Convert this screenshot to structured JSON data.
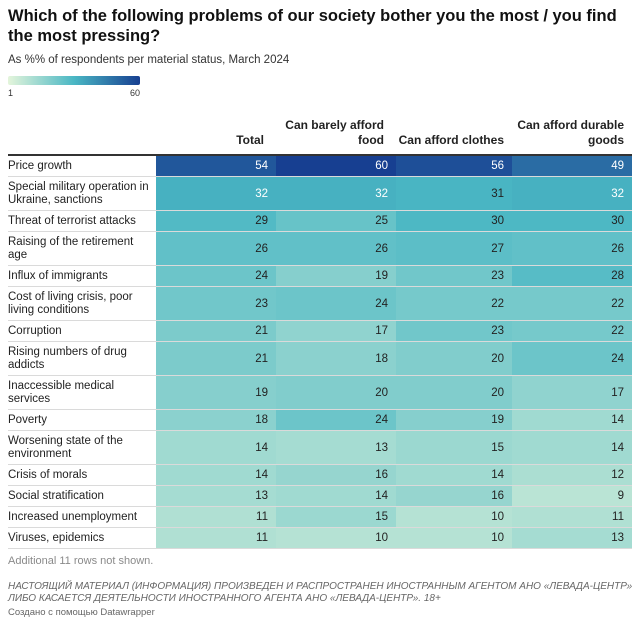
{
  "title": "Which of the following problems of our society bother you the most / you find the most pressing?",
  "subtitle": "As %% of respondents per material status, March 2024",
  "legend": {
    "min": "1",
    "max": "60",
    "min_value": 1,
    "max_value": 60
  },
  "colors": {
    "low": "#e4f5db",
    "mid": "#4ab7c4",
    "high": "#173f91"
  },
  "columns": [
    "Total",
    "Can barely afford food",
    "Can afford clothes",
    "Can afford durable goods"
  ],
  "chart_data": {
    "type": "table",
    "title": "Which of the following problems of our society bother you the most / you find the most pressing?",
    "columns": [
      "Total",
      "Can barely afford food",
      "Can afford clothes",
      "Can afford durable goods"
    ],
    "rows": [
      {
        "label": "Price growth",
        "values": [
          54,
          60,
          56,
          49
        ]
      },
      {
        "label": "Special military operation in Ukraine, sanctions",
        "values": [
          32,
          32,
          31,
          32
        ]
      },
      {
        "label": "Threat of terrorist attacks",
        "values": [
          29,
          25,
          30,
          30
        ]
      },
      {
        "label": "Raising of the retirement age",
        "values": [
          26,
          26,
          27,
          26
        ]
      },
      {
        "label": "Influx of immigrants",
        "values": [
          24,
          19,
          23,
          28
        ]
      },
      {
        "label": "Cost of living crisis, poor living conditions",
        "values": [
          23,
          24,
          22,
          22
        ]
      },
      {
        "label": "Corruption",
        "values": [
          21,
          17,
          23,
          22
        ]
      },
      {
        "label": "Rising numbers of drug addicts",
        "values": [
          21,
          18,
          20,
          24
        ]
      },
      {
        "label": "Inaccessible medical services",
        "values": [
          19,
          20,
          20,
          17
        ]
      },
      {
        "label": "Poverty",
        "values": [
          18,
          24,
          19,
          14
        ]
      },
      {
        "label": "Worsening state of the environment",
        "values": [
          14,
          13,
          15,
          14
        ]
      },
      {
        "label": "Crisis of morals",
        "values": [
          14,
          16,
          14,
          12
        ]
      },
      {
        "label": "Social stratification",
        "values": [
          13,
          14,
          16,
          9
        ]
      },
      {
        "label": "Increased unemployment",
        "values": [
          11,
          15,
          10,
          11
        ]
      },
      {
        "label": "Viruses, epidemics",
        "values": [
          11,
          10,
          10,
          13
        ]
      }
    ],
    "color_range": [
      1,
      60
    ]
  },
  "note": "Additional 11 rows not shown.",
  "disclaimer": "НАСТОЯЩИЙ МАТЕРИАЛ (ИНФОРМАЦИЯ) ПРОИЗВЕДЕН И РАСПРОСТРАНЕН ИНОСТРАННЫМ АГЕНТОМ АНО «ЛЕВАДА-ЦЕНТР» ЛИБО КАСАЕТСЯ ДЕЯТЕЛЬНОСТИ ИНОСТРАННОГО АГЕНТА АНО «ЛЕВАДА-ЦЕНТР». 18+",
  "credit": "Создано с помощью Datawrapper"
}
